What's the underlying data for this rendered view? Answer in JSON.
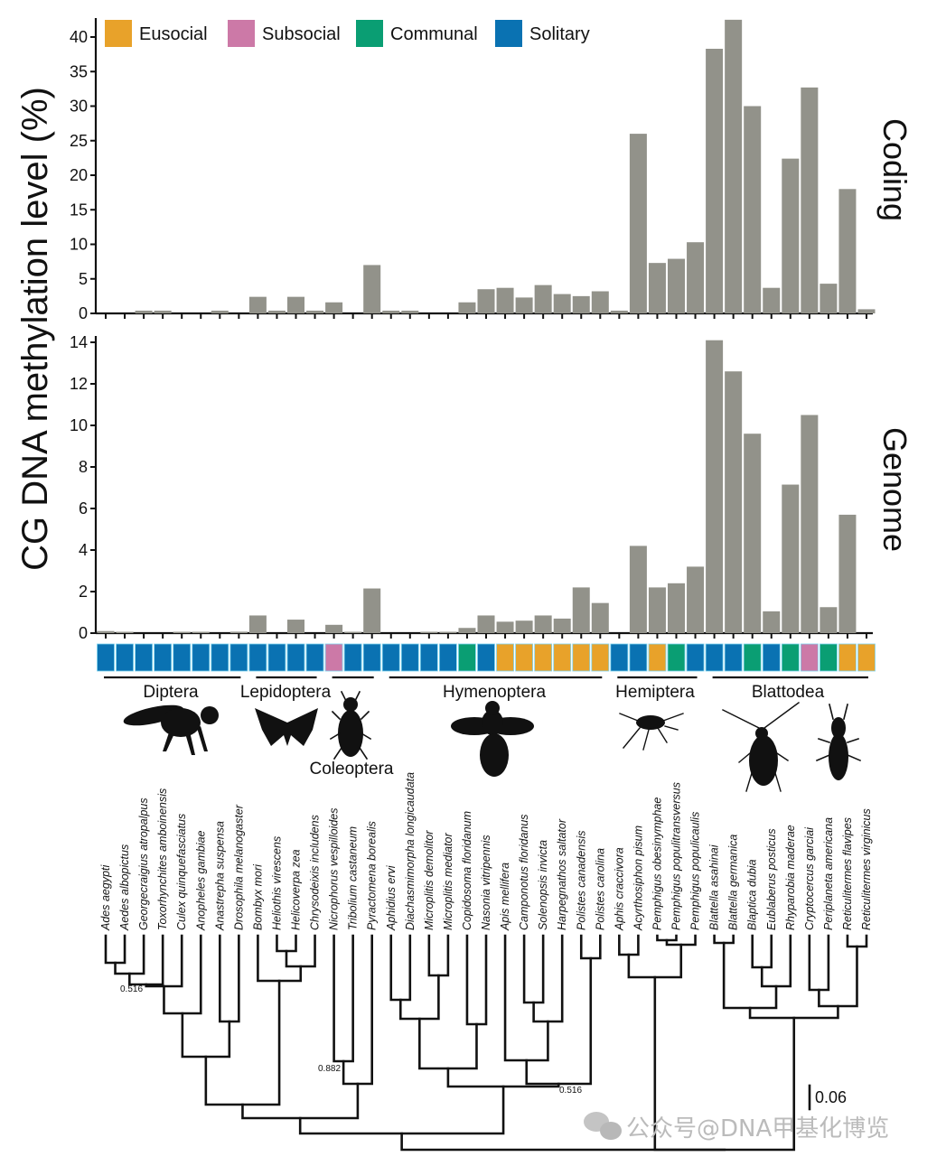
{
  "chart_data": {
    "type": "bar",
    "title": "",
    "ylabel": "CG DNA methylation level (%)",
    "xlabel": "",
    "legend": {
      "placement": "top-left",
      "entries": [
        {
          "label": "Eusocial",
          "color": "#e8a22a"
        },
        {
          "label": "Subsocial",
          "color": "#cc79a7"
        },
        {
          "label": "Communal",
          "color": "#0a9e73"
        },
        {
          "label": "Solitary",
          "color": "#0a72b2"
        }
      ]
    },
    "categories": [
      "Ades aegypti",
      "Aedes albopictus",
      "Georgecraigius atropalpus",
      "Toxorhynchites amboinensis",
      "Culex quinquefasciatus",
      "Anopheles gambiae",
      "Anastrepha suspensa",
      "Drosophila melanogaster",
      "Bombyx mori",
      "Heliothis virescens",
      "Helicoverpa zea",
      "Chrysodeixis includens",
      "Nicrophorus vespilloides",
      "Tribolium castaneum",
      "Pyractomena borealis",
      "Aphidius ervi",
      "Diachasmimorpha longicaudata",
      "Microplitis demolitor",
      "Microplitis mediator",
      "Copidosoma floridanum",
      "Nasonia vitripennis",
      "Apis mellifera",
      "Camponotus floridanus",
      "Solenopsis invicta",
      "Harpegnathos saltator",
      "Polistes canadensis",
      "Polistes carolina",
      "Aphis craccivora",
      "Acyrthosiphon pisum",
      "Pemphigus obesinymphae",
      "Pemphigus populitransversus",
      "Pemphigus populicaulis",
      "Blattella asahinai",
      "Blattella germanica",
      "Blaptica dubia",
      "Eublaberus posticus",
      "Rhyparobia maderae",
      "Cryptocercus garciai",
      "Periplaneta americana",
      "Reticulitermes flavipes",
      "Reticulitermes virginicus"
    ],
    "social_class": [
      "Solitary",
      "Solitary",
      "Solitary",
      "Solitary",
      "Solitary",
      "Solitary",
      "Solitary",
      "Solitary",
      "Solitary",
      "Solitary",
      "Solitary",
      "Solitary",
      "Subsocial",
      "Solitary",
      "Solitary",
      "Solitary",
      "Solitary",
      "Solitary",
      "Solitary",
      "Communal",
      "Solitary",
      "Eusocial",
      "Eusocial",
      "Eusocial",
      "Eusocial",
      "Eusocial",
      "Eusocial",
      "Solitary",
      "Solitary",
      "Eusocial",
      "Communal",
      "Solitary",
      "Solitary",
      "Solitary",
      "Communal",
      "Solitary",
      "Communal",
      "Subsocial",
      "Communal",
      "Eusocial",
      "Eusocial"
    ],
    "panels": [
      {
        "name": "Coding",
        "ylim": [
          0,
          42.5
        ],
        "yticks": [
          0,
          5,
          10,
          15,
          20,
          25,
          30,
          35,
          40
        ],
        "values": [
          0,
          0,
          0.4,
          0.4,
          0,
          0,
          0.4,
          0,
          2.4,
          0.4,
          2.4,
          0.4,
          1.6,
          0,
          7.0,
          0.4,
          0.4,
          0,
          0,
          1.6,
          3.5,
          3.7,
          2.3,
          4.1,
          2.8,
          2.5,
          3.2,
          0.4,
          26.0,
          7.3,
          7.9,
          10.3,
          38.3,
          42.5,
          30.0,
          3.7,
          22.4,
          32.7,
          4.3,
          18.0,
          0.6
        ]
      },
      {
        "name": "Genome",
        "ylim": [
          0,
          14.1
        ],
        "yticks": [
          0,
          2,
          4,
          6,
          8,
          10,
          12,
          14
        ],
        "values": [
          0.1,
          0.05,
          0,
          0,
          0.03,
          0.03,
          0,
          0.07,
          0.85,
          0,
          0.65,
          0,
          0.4,
          0.05,
          2.15,
          0,
          0,
          0.03,
          0.05,
          0.25,
          0.85,
          0.55,
          0.6,
          0.85,
          0.7,
          2.2,
          1.45,
          0,
          4.2,
          2.2,
          2.4,
          3.2,
          14.1,
          12.6,
          9.6,
          1.05,
          7.15,
          10.5,
          1.25,
          5.7,
          0
        ]
      }
    ],
    "orders": [
      {
        "label": "Diptera",
        "from": 0,
        "to": 7
      },
      {
        "label": "Lepidoptera",
        "from": 8,
        "to": 11
      },
      {
        "label": "Coleoptera",
        "from": 12,
        "to": 14
      },
      {
        "label": "Hymenoptera",
        "from": 15,
        "to": 26
      },
      {
        "label": "Hemiptera",
        "from": 27,
        "to": 31
      },
      {
        "label": "Blattodea",
        "from": 32,
        "to": 40
      }
    ],
    "tree": {
      "bootstrap_labels": [
        "0.516",
        "0.882",
        "0.516"
      ],
      "scale_bar_label": "0.06"
    }
  },
  "watermark": "公众号@DNA甲基化博览"
}
